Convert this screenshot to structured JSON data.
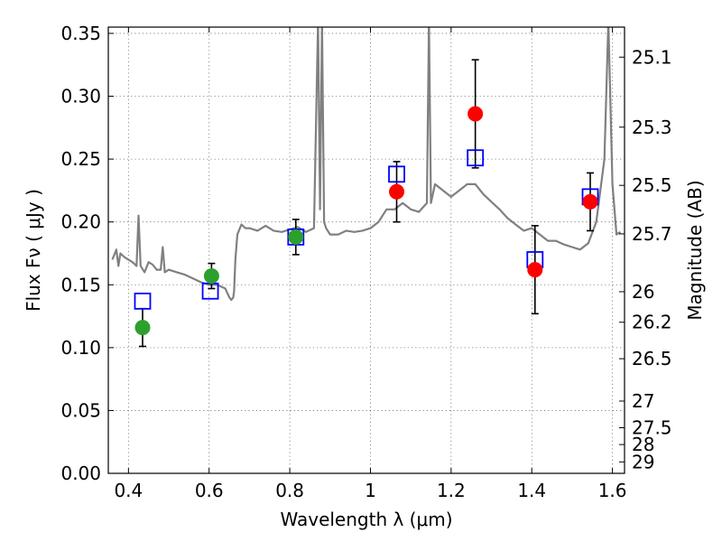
{
  "chart_data": {
    "type": "scatter",
    "title": "",
    "xlabel": "Wavelength  λ (μm)",
    "ylabel": "Flux  Fν  ( μJy )",
    "y2label": "Magnitude (AB)",
    "xlim": [
      0.35,
      1.63
    ],
    "ylim": [
      0.0,
      0.355
    ],
    "x_ticks": [
      0.4,
      0.6,
      0.8,
      1.0,
      1.2,
      1.4,
      1.6
    ],
    "x_tick_labels": [
      "0.4",
      "0.6",
      "0.8",
      "1",
      "1.2",
      "1.4",
      "1.6"
    ],
    "y_ticks": [
      0.0,
      0.05,
      0.1,
      0.15,
      0.2,
      0.25,
      0.3,
      0.35
    ],
    "y_tick_labels": [
      "0.00",
      "0.05",
      "0.10",
      "0.15",
      "0.20",
      "0.25",
      "0.30",
      "0.35"
    ],
    "y2_ticks": [
      {
        "label": "25.1",
        "flux": 0.3311
      },
      {
        "label": "25.3",
        "flux": 0.2754
      },
      {
        "label": "25.5",
        "flux": 0.2291
      },
      {
        "label": "25.7",
        "flux": 0.1905
      },
      {
        "label": "26",
        "flux": 0.1445
      },
      {
        "label": "26.2",
        "flux": 0.1202
      },
      {
        "label": "26.5",
        "flux": 0.0912
      },
      {
        "label": "27",
        "flux": 0.0575
      },
      {
        "label": "27.5",
        "flux": 0.0363
      },
      {
        "label": "28",
        "flux": 0.0229
      },
      {
        "label": "29",
        "flux": 0.0091
      }
    ],
    "grid": true,
    "colors": {
      "model": "#808080",
      "box": "#0000ff",
      "green": "#2ca02c",
      "red": "#ff0000",
      "error": "#000000"
    },
    "series": [
      {
        "marker": "line",
        "x": [
          0.36,
          0.37,
          0.375,
          0.38,
          0.39,
          0.4,
          0.41,
          0.42,
          0.425,
          0.43,
          0.44,
          0.45,
          0.46,
          0.47,
          0.48,
          0.485,
          0.49,
          0.5,
          0.52,
          0.54,
          0.56,
          0.58,
          0.6,
          0.62,
          0.64,
          0.65,
          0.655,
          0.66,
          0.662,
          0.665,
          0.67,
          0.68,
          0.69,
          0.7,
          0.72,
          0.74,
          0.76,
          0.78,
          0.8,
          0.82,
          0.84,
          0.86,
          0.87,
          0.875,
          0.88,
          0.885,
          0.89,
          0.9,
          0.92,
          0.94,
          0.96,
          0.98,
          1.0,
          1.02,
          1.04,
          1.06,
          1.08,
          1.1,
          1.12,
          1.14,
          1.145,
          1.15,
          1.16,
          1.18,
          1.2,
          1.22,
          1.24,
          1.26,
          1.28,
          1.3,
          1.32,
          1.34,
          1.36,
          1.38,
          1.4,
          1.42,
          1.44,
          1.46,
          1.48,
          1.5,
          1.52,
          1.54,
          1.56,
          1.58,
          1.59,
          1.6,
          1.61,
          1.62
        ],
        "y": [
          0.17,
          0.178,
          0.165,
          0.175,
          0.172,
          0.17,
          0.168,
          0.165,
          0.205,
          0.165,
          0.16,
          0.168,
          0.166,
          0.162,
          0.162,
          0.18,
          0.16,
          0.162,
          0.16,
          0.158,
          0.155,
          0.152,
          0.15,
          0.15,
          0.147,
          0.14,
          0.138,
          0.14,
          0.145,
          0.17,
          0.19,
          0.198,
          0.195,
          0.195,
          0.193,
          0.197,
          0.193,
          0.192,
          0.194,
          0.196,
          0.192,
          0.195,
          0.36,
          0.21,
          0.36,
          0.2,
          0.195,
          0.19,
          0.19,
          0.193,
          0.192,
          0.193,
          0.195,
          0.2,
          0.21,
          0.21,
          0.215,
          0.21,
          0.208,
          0.215,
          0.36,
          0.215,
          0.23,
          0.225,
          0.22,
          0.225,
          0.23,
          0.23,
          0.222,
          0.216,
          0.21,
          0.203,
          0.198,
          0.193,
          0.195,
          0.19,
          0.185,
          0.185,
          0.182,
          0.18,
          0.178,
          0.183,
          0.2,
          0.25,
          0.36,
          0.23,
          0.19,
          0.192
        ]
      },
      {
        "marker": "square",
        "x": [
          0.435,
          0.603,
          0.815,
          1.065,
          1.26,
          1.408,
          1.545
        ],
        "y": [
          0.137,
          0.145,
          0.188,
          0.238,
          0.251,
          0.17,
          0.22
        ]
      },
      {
        "marker": "circle",
        "x": [
          0.435,
          0.606,
          0.815
        ],
        "y": [
          0.116,
          0.157,
          0.188
        ],
        "yerr": [
          0.015,
          0.01,
          0.014
        ]
      },
      {
        "marker": "circle",
        "x": [
          1.065,
          1.26,
          1.408,
          1.545
        ],
        "y": [
          0.224,
          0.286,
          0.162,
          0.216
        ],
        "yerr": [
          0.024,
          0.043,
          0.035,
          0.023
        ]
      }
    ]
  }
}
